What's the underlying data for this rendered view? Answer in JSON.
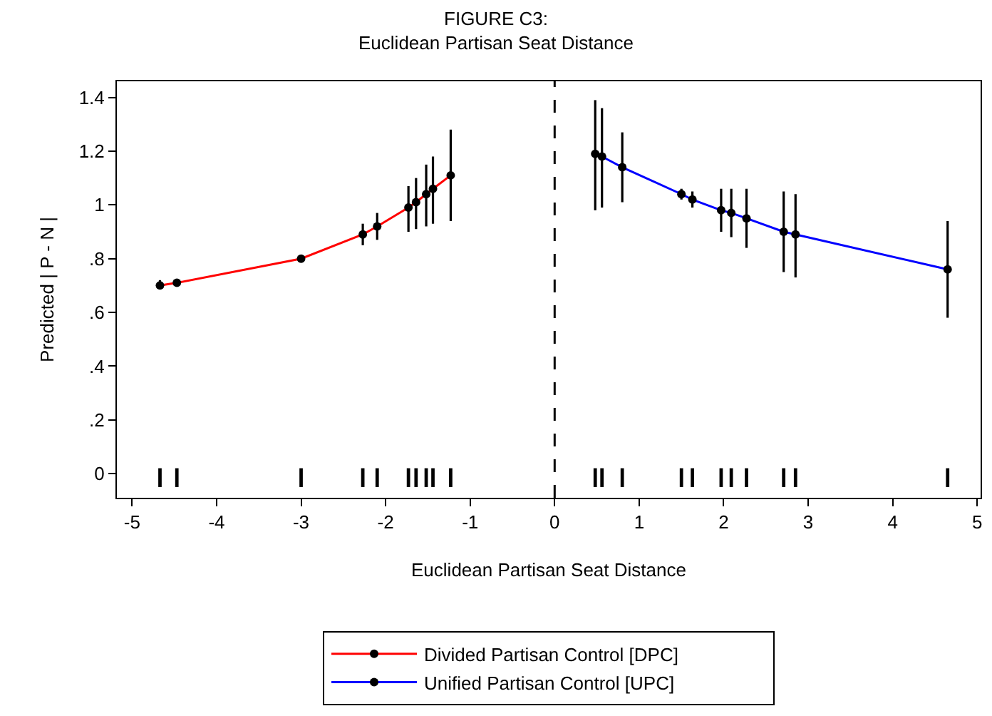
{
  "chart_data": {
    "type": "line",
    "title": "FIGURE C3:",
    "subtitle": "Euclidean Partisan Seat Distance",
    "xlabel": "Euclidean Partisan Seat Distance",
    "ylabel": "Predicted | P - N |",
    "series": [
      {
        "name": "Divided Partisan Control [DPC]",
        "color": "#ff0000",
        "marker": "circle",
        "x": [
          -4.67,
          -4.47,
          -3.0,
          -2.27,
          -2.1,
          -1.73,
          -1.64,
          -1.52,
          -1.44,
          -1.23
        ],
        "values": [
          0.7,
          0.71,
          0.8,
          0.89,
          0.92,
          0.99,
          1.01,
          1.04,
          1.06,
          1.11
        ],
        "errors": [
          [
            0.69,
            0.72
          ],
          [
            0.7,
            0.72
          ],
          null,
          [
            0.85,
            0.93
          ],
          [
            0.87,
            0.97
          ],
          [
            0.9,
            1.07
          ],
          [
            0.91,
            1.1
          ],
          [
            0.92,
            1.15
          ],
          [
            0.93,
            1.18
          ],
          [
            0.94,
            1.28
          ]
        ]
      },
      {
        "name": "Unified Partisan Control [UPC]",
        "color": "#0000ff",
        "marker": "circle",
        "x": [
          0.48,
          0.56,
          0.8,
          1.5,
          1.63,
          1.97,
          2.09,
          2.27,
          2.71,
          2.85,
          4.65
        ],
        "values": [
          1.19,
          1.18,
          1.14,
          1.04,
          1.02,
          0.98,
          0.97,
          0.95,
          0.9,
          0.89,
          0.76
        ],
        "errors": [
          [
            0.98,
            1.39
          ],
          [
            0.99,
            1.36
          ],
          [
            1.01,
            1.27
          ],
          [
            1.02,
            1.06
          ],
          [
            0.99,
            1.05
          ],
          [
            0.9,
            1.06
          ],
          [
            0.88,
            1.06
          ],
          [
            0.84,
            1.06
          ],
          [
            0.75,
            1.05
          ],
          [
            0.73,
            1.04
          ],
          [
            0.58,
            0.94
          ]
        ]
      },
      {
        "type": "bar",
        "color": "#000000",
        "base": [
          -0.05,
          -0.05,
          -0.05,
          -0.05,
          -0.05,
          -0.05,
          -0.05,
          -0.05,
          -0.05,
          -0.05,
          -0.05,
          -0.05,
          -0.05,
          -0.05,
          -0.05,
          -0.05,
          -0.05,
          -0.05,
          -0.05,
          -0.05,
          -0.05
        ],
        "x": [
          -4.67,
          -4.47,
          -3.0,
          -2.27,
          -2.1,
          -1.73,
          -1.64,
          -1.52,
          -1.44,
          -1.23,
          0.48,
          0.56,
          0.8,
          1.5,
          1.63,
          1.97,
          2.09,
          2.27,
          2.71,
          2.85,
          4.65
        ],
        "values": [
          0.07,
          0.07,
          0.07,
          0.07,
          0.07,
          0.07,
          0.07,
          0.07,
          0.07,
          0.07,
          0.07,
          0.07,
          0.07,
          0.07,
          0.07,
          0.07,
          0.07,
          0.07,
          0.07,
          0.07,
          0.07
        ]
      }
    ],
    "xlim": [
      -5.18,
      5.04
    ],
    "xticks": [
      -5,
      -4,
      -3,
      -2,
      -1,
      0,
      1,
      2,
      3,
      4,
      5
    ],
    "ylim": [
      -0.09,
      1.46
    ],
    "yticks": [
      0,
      {
        "value": 0.2,
        "label": ".2"
      },
      {
        "value": 0.4,
        "label": ".4"
      },
      {
        "value": 0.6,
        "label": ".6"
      },
      {
        "value": 0.8,
        "label": ".8"
      },
      1,
      1.2,
      1.4
    ],
    "ref_lines": [
      {
        "axis": "x",
        "value": 0,
        "color": "#000000",
        "line_style": "dashed"
      }
    ],
    "legend": "bottom"
  }
}
